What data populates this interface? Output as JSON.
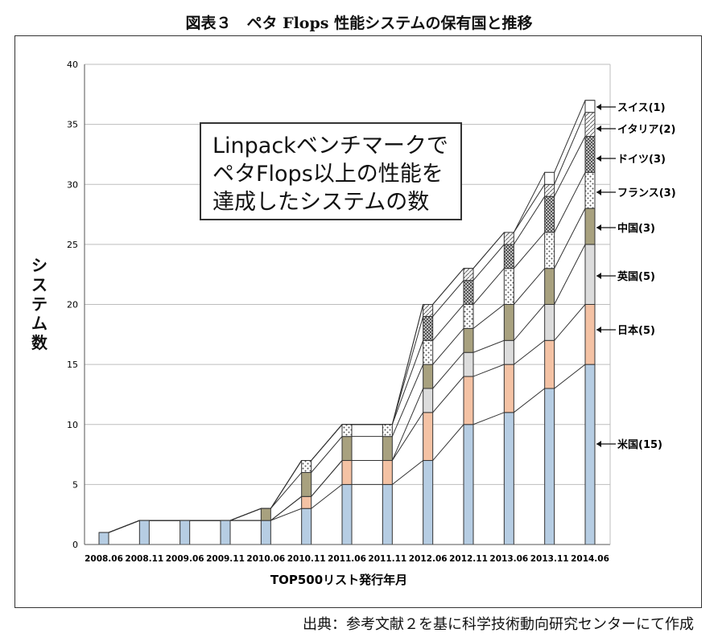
{
  "title": "図表３　ペタ Flops 性能システムの保有国と推移",
  "callout": "Linpackベンチマークで\nペタFlops以上の性能を\n達成したシステムの数",
  "source": "出典：参考文献２を基に科学技術動向研究センターにて作成",
  "colors": {
    "米国": "#b6cde3",
    "日本": "#f4c2a4",
    "英国": "#dcdcdc",
    "中国": "#a8a17f",
    "フランス": "#ffffff",
    "ドイツ": "#8d8d8d",
    "イタリア": "#ffffff",
    "スイス": "#ffffff"
  },
  "chart_data": {
    "type": "bar",
    "stacked": true,
    "categories": [
      "2008.06",
      "2008.11",
      "2009.06",
      "2009.11",
      "2010.06",
      "2010.11",
      "2011.06",
      "2011.11",
      "2012.06",
      "2012.11",
      "2013.06",
      "2013.11",
      "2014.06"
    ],
    "series": [
      {
        "name": "米国",
        "values": [
          1,
          2,
          2,
          2,
          2,
          3,
          5,
          5,
          7,
          10,
          11,
          13,
          15
        ]
      },
      {
        "name": "日本",
        "values": [
          0,
          0,
          0,
          0,
          0,
          1,
          2,
          2,
          4,
          4,
          4,
          4,
          5
        ]
      },
      {
        "name": "英国",
        "values": [
          0,
          0,
          0,
          0,
          0,
          0,
          0,
          0,
          2,
          2,
          2,
          3,
          5
        ]
      },
      {
        "name": "中国",
        "values": [
          0,
          0,
          0,
          0,
          1,
          2,
          2,
          2,
          2,
          2,
          3,
          3,
          3
        ]
      },
      {
        "name": "フランス",
        "values": [
          0,
          0,
          0,
          0,
          0,
          1,
          1,
          1,
          2,
          2,
          3,
          3,
          3
        ]
      },
      {
        "name": "ドイツ",
        "values": [
          0,
          0,
          0,
          0,
          0,
          0,
          0,
          0,
          2,
          2,
          2,
          3,
          3
        ]
      },
      {
        "name": "イタリア",
        "values": [
          0,
          0,
          0,
          0,
          0,
          0,
          0,
          0,
          1,
          1,
          1,
          1,
          2
        ]
      },
      {
        "name": "スイス",
        "values": [
          0,
          0,
          0,
          0,
          0,
          0,
          0,
          0,
          0,
          0,
          0,
          1,
          1
        ]
      }
    ],
    "legend_labels": [
      "スイス(1)",
      "イタリア(2)",
      "ドイツ(3)",
      "フランス(3)",
      "中国(3)",
      "英国(5)",
      "日本(5)",
      "米国(15)"
    ],
    "legend_placement": "right, arrows pointing to 2014.06 bar segments",
    "xlabel": "TOP500リスト発行年月",
    "ylabel": "システム数",
    "ylim": [
      0,
      40
    ],
    "yticks": [
      0,
      5,
      10,
      15,
      20,
      25,
      30,
      35,
      40
    ],
    "grid": true
  }
}
